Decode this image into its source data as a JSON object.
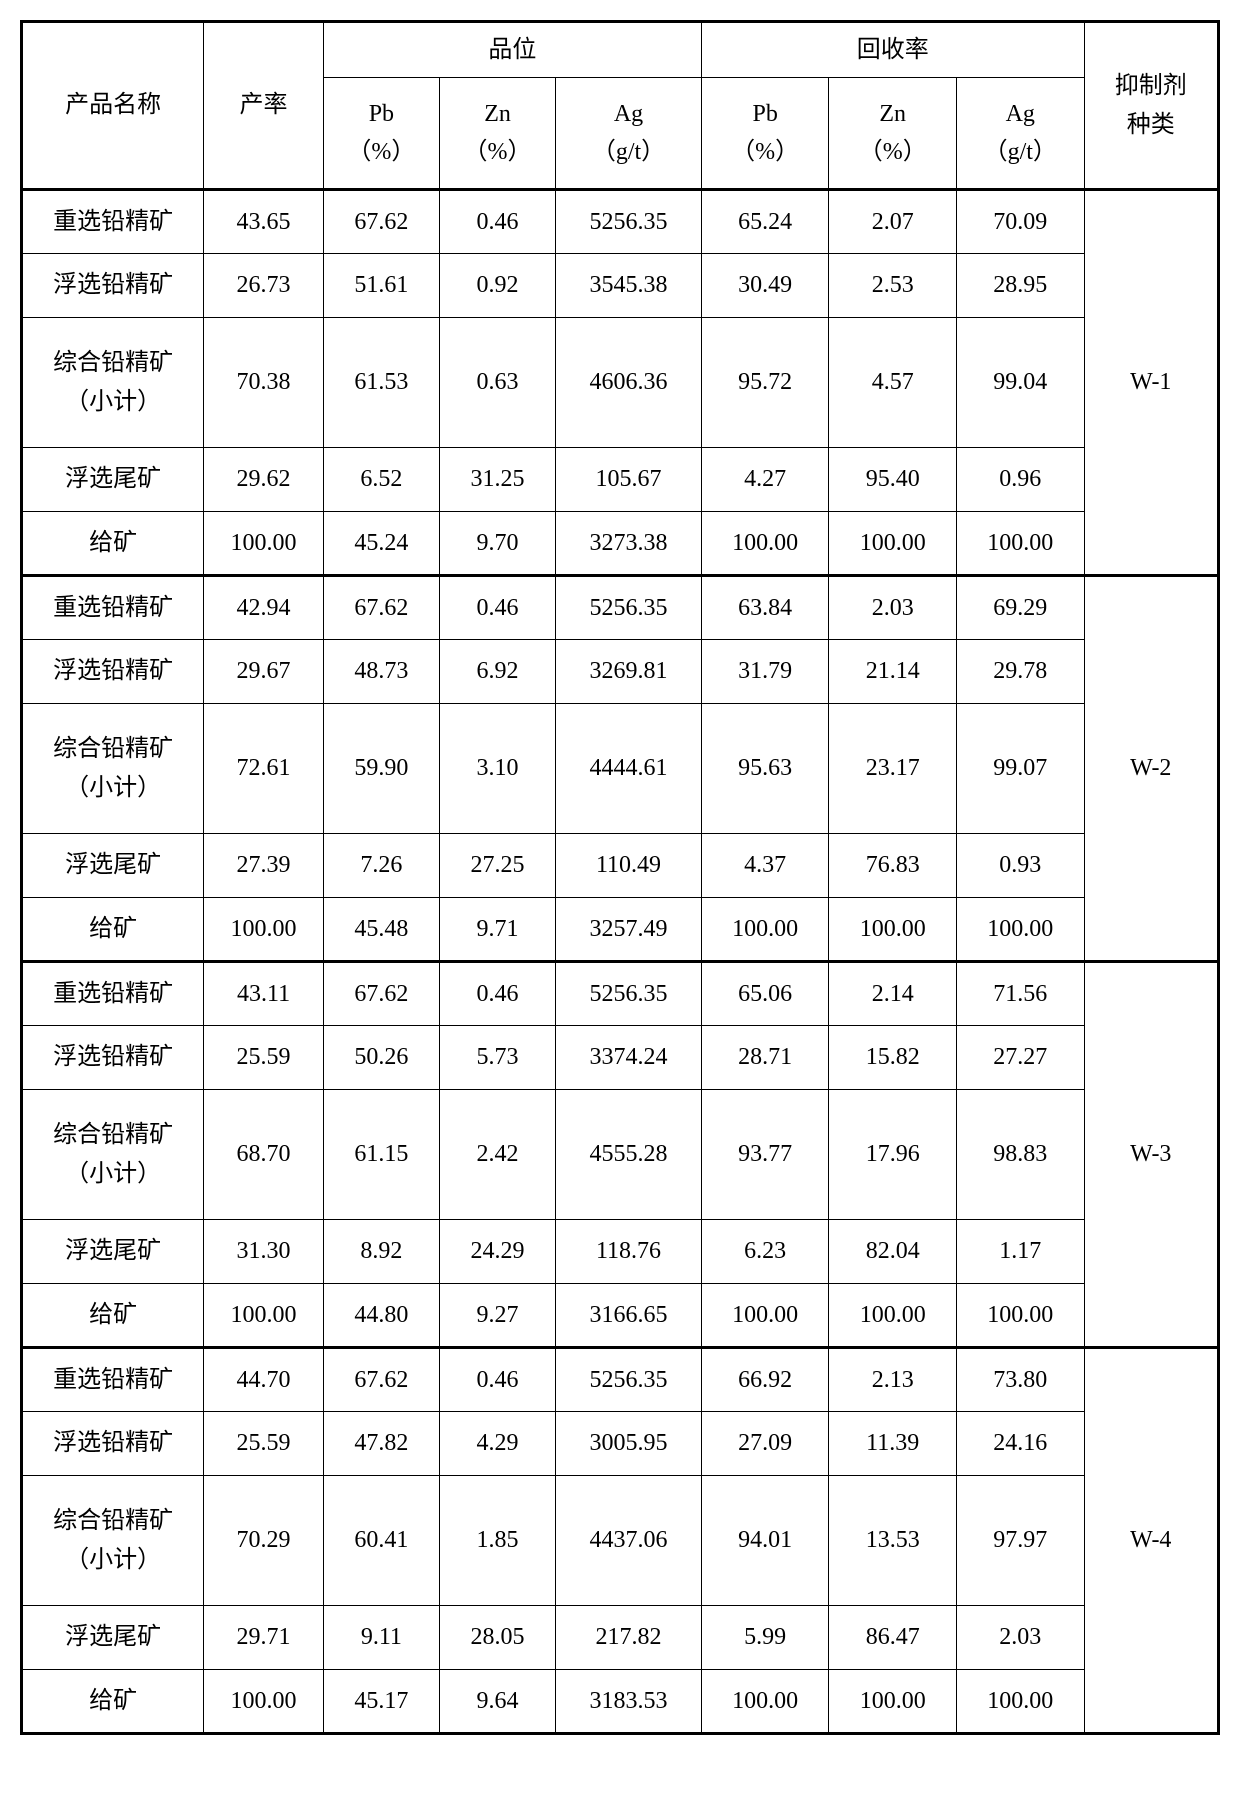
{
  "headers": {
    "product_name": "产品名称",
    "yield": "产率",
    "grade": "品位",
    "recovery": "回收率",
    "inhibitor": "抑制剂种类",
    "pb_pct": "Pb（%）",
    "zn_pct": "Zn（%）",
    "ag_gt": "Ag（g/t）"
  },
  "row_labels": {
    "gravity_pb": "重选铅精矿",
    "float_pb": "浮选铅精矿",
    "combined_pb": "综合铅精矿（小计）",
    "float_tail": "浮选尾矿",
    "feed": "给矿"
  },
  "groups": [
    {
      "inhibitor": "W-1",
      "rows": [
        {
          "label_key": "gravity_pb",
          "yield": "43.65",
          "g_pb": "67.62",
          "g_zn": "0.46",
          "g_ag": "5256.35",
          "r_pb": "65.24",
          "r_zn": "2.07",
          "r_ag": "70.09"
        },
        {
          "label_key": "float_pb",
          "yield": "26.73",
          "g_pb": "51.61",
          "g_zn": "0.92",
          "g_ag": "3545.38",
          "r_pb": "30.49",
          "r_zn": "2.53",
          "r_ag": "28.95"
        },
        {
          "label_key": "combined_pb",
          "tall": true,
          "yield": "70.38",
          "g_pb": "61.53",
          "g_zn": "0.63",
          "g_ag": "4606.36",
          "r_pb": "95.72",
          "r_zn": "4.57",
          "r_ag": "99.04"
        },
        {
          "label_key": "float_tail",
          "yield": "29.62",
          "g_pb": "6.52",
          "g_zn": "31.25",
          "g_ag": "105.67",
          "r_pb": "4.27",
          "r_zn": "95.40",
          "r_ag": "0.96"
        },
        {
          "label_key": "feed",
          "yield": "100.00",
          "g_pb": "45.24",
          "g_zn": "9.70",
          "g_ag": "3273.38",
          "r_pb": "100.00",
          "r_zn": "100.00",
          "r_ag": "100.00"
        }
      ]
    },
    {
      "inhibitor": "W-2",
      "rows": [
        {
          "label_key": "gravity_pb",
          "yield": "42.94",
          "g_pb": "67.62",
          "g_zn": "0.46",
          "g_ag": "5256.35",
          "r_pb": "63.84",
          "r_zn": "2.03",
          "r_ag": "69.29"
        },
        {
          "label_key": "float_pb",
          "yield": "29.67",
          "g_pb": "48.73",
          "g_zn": "6.92",
          "g_ag": "3269.81",
          "r_pb": "31.79",
          "r_zn": "21.14",
          "r_ag": "29.78"
        },
        {
          "label_key": "combined_pb",
          "tall": true,
          "yield": "72.61",
          "g_pb": "59.90",
          "g_zn": "3.10",
          "g_ag": "4444.61",
          "r_pb": "95.63",
          "r_zn": "23.17",
          "r_ag": "99.07"
        },
        {
          "label_key": "float_tail",
          "yield": "27.39",
          "g_pb": "7.26",
          "g_zn": "27.25",
          "g_ag": "110.49",
          "r_pb": "4.37",
          "r_zn": "76.83",
          "r_ag": "0.93"
        },
        {
          "label_key": "feed",
          "yield": "100.00",
          "g_pb": "45.48",
          "g_zn": "9.71",
          "g_ag": "3257.49",
          "r_pb": "100.00",
          "r_zn": "100.00",
          "r_ag": "100.00"
        }
      ]
    },
    {
      "inhibitor": "W-3",
      "rows": [
        {
          "label_key": "gravity_pb",
          "yield": "43.11",
          "g_pb": "67.62",
          "g_zn": "0.46",
          "g_ag": "5256.35",
          "r_pb": "65.06",
          "r_zn": "2.14",
          "r_ag": "71.56"
        },
        {
          "label_key": "float_pb",
          "yield": "25.59",
          "g_pb": "50.26",
          "g_zn": "5.73",
          "g_ag": "3374.24",
          "r_pb": "28.71",
          "r_zn": "15.82",
          "r_ag": "27.27"
        },
        {
          "label_key": "combined_pb",
          "tall": true,
          "yield": "68.70",
          "g_pb": "61.15",
          "g_zn": "2.42",
          "g_ag": "4555.28",
          "r_pb": "93.77",
          "r_zn": "17.96",
          "r_ag": "98.83"
        },
        {
          "label_key": "float_tail",
          "yield": "31.30",
          "g_pb": "8.92",
          "g_zn": "24.29",
          "g_ag": "118.76",
          "r_pb": "6.23",
          "r_zn": "82.04",
          "r_ag": "1.17"
        },
        {
          "label_key": "feed",
          "yield": "100.00",
          "g_pb": "44.80",
          "g_zn": "9.27",
          "g_ag": "3166.65",
          "r_pb": "100.00",
          "r_zn": "100.00",
          "r_ag": "100.00"
        }
      ]
    },
    {
      "inhibitor": "W-4",
      "rows": [
        {
          "label_key": "gravity_pb",
          "yield": "44.70",
          "g_pb": "67.62",
          "g_zn": "0.46",
          "g_ag": "5256.35",
          "r_pb": "66.92",
          "r_zn": "2.13",
          "r_ag": "73.80"
        },
        {
          "label_key": "float_pb",
          "yield": "25.59",
          "g_pb": "47.82",
          "g_zn": "4.29",
          "g_ag": "3005.95",
          "r_pb": "27.09",
          "r_zn": "11.39",
          "r_ag": "24.16"
        },
        {
          "label_key": "combined_pb",
          "tall": true,
          "yield": "70.29",
          "g_pb": "60.41",
          "g_zn": "1.85",
          "g_ag": "4437.06",
          "r_pb": "94.01",
          "r_zn": "13.53",
          "r_ag": "97.97"
        },
        {
          "label_key": "float_tail",
          "yield": "29.71",
          "g_pb": "9.11",
          "g_zn": "28.05",
          "g_ag": "217.82",
          "r_pb": "5.99",
          "r_zn": "86.47",
          "r_ag": "2.03"
        },
        {
          "label_key": "feed",
          "yield": "100.00",
          "g_pb": "45.17",
          "g_zn": "9.64",
          "g_ag": "3183.53",
          "r_pb": "100.00",
          "r_zn": "100.00",
          "r_ag": "100.00"
        }
      ]
    }
  ]
}
